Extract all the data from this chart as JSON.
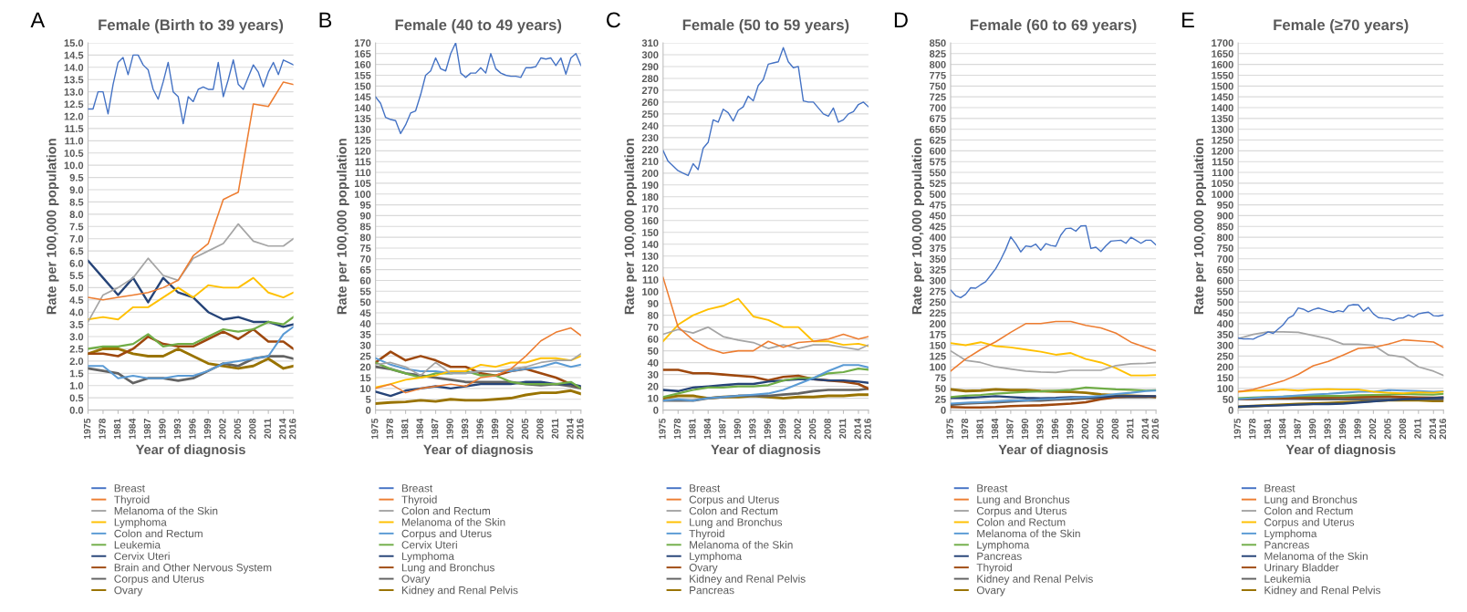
{
  "chart_data": [
    {
      "type": "line",
      "title": "Female (Birth to 39 years)",
      "xlabel": "Year of diagnosis",
      "ylabel": "Rate per 100,000 population",
      "annotations": [
        "A"
      ],
      "grid": "y",
      "legend": "bottom",
      "x": [
        1975,
        1978,
        1981,
        1984,
        1987,
        1990,
        1993,
        1996,
        1999,
        2002,
        2005,
        2008,
        2011,
        2014,
        2016
      ],
      "xlim": [
        1975,
        2016
      ],
      "xticks": [
        1975,
        1978,
        1981,
        1984,
        1987,
        1990,
        1993,
        1996,
        1999,
        2002,
        2005,
        2008,
        2011,
        2014,
        2016
      ],
      "ylim": [
        0,
        15
      ],
      "yticks": [
        {
          "value": 0,
          "label": "0.0"
        },
        {
          "value": 0.5,
          "label": "0.5"
        },
        {
          "value": 1,
          "label": "1.0"
        },
        {
          "value": 1.5,
          "label": "1.5"
        },
        {
          "value": 2,
          "label": "2.0"
        },
        {
          "value": 2.5,
          "label": "2.5"
        },
        {
          "value": 3,
          "label": "3.0"
        },
        {
          "value": 3.5,
          "label": "3.5"
        },
        {
          "value": 4,
          "label": "4.0"
        },
        {
          "value": 4.5,
          "label": "4.5"
        },
        {
          "value": 5,
          "label": "5.0"
        },
        {
          "value": 5.5,
          "label": "5.5"
        },
        {
          "value": 6,
          "label": "6.0"
        },
        {
          "value": 6.5,
          "label": "6.5"
        },
        {
          "value": 7,
          "label": "7.0"
        },
        {
          "value": 7.5,
          "label": "7.5"
        },
        {
          "value": 8,
          "label": "8.0"
        },
        {
          "value": 8.5,
          "label": "8.5"
        },
        {
          "value": 9,
          "label": "9.0"
        },
        {
          "value": 9.5,
          "label": "9.5"
        },
        {
          "value": 10,
          "label": "10.0"
        },
        {
          "value": 10.5,
          "label": "10.5"
        },
        {
          "value": 11,
          "label": "11.0"
        },
        {
          "value": 11.5,
          "label": "11.5"
        },
        {
          "value": 12,
          "label": "12.0"
        },
        {
          "value": 12.5,
          "label": "12.5"
        },
        {
          "value": 13,
          "label": "13.0"
        },
        {
          "value": 13.5,
          "label": "13.5"
        },
        {
          "value": 14,
          "label": "14.0"
        },
        {
          "value": 14.5,
          "label": "14.5"
        },
        {
          "value": 15,
          "label": "15.0"
        }
      ],
      "series": [
        {
          "name": "Breast",
          "color": "#4472c4",
          "x": [
            1975,
            1976,
            1977,
            1978,
            1979,
            1980,
            1981,
            1982,
            1983,
            1984,
            1985,
            1986,
            1987,
            1988,
            1989,
            1990,
            1991,
            1992,
            1993,
            1994,
            1995,
            1996,
            1997,
            1998,
            1999,
            2000,
            2001,
            2002,
            2003,
            2004,
            2005,
            2006,
            2007,
            2008,
            2009,
            2010,
            2011,
            2012,
            2013,
            2014,
            2015,
            2016
          ],
          "values": [
            12.3,
            12.3,
            13.0,
            13.0,
            12.1,
            13.3,
            14.2,
            14.4,
            13.7,
            14.5,
            14.5,
            14.1,
            13.9,
            13.1,
            12.7,
            13.4,
            14.2,
            13.0,
            12.8,
            11.7,
            12.8,
            12.6,
            13.1,
            13.2,
            13.1,
            13.1,
            14.2,
            12.8,
            13.5,
            14.3,
            13.3,
            13.1,
            13.6,
            14.1,
            13.8,
            13.2,
            13.8,
            14.2,
            13.7,
            14.3,
            14.2,
            14.1
          ]
        },
        {
          "name": "Thyroid",
          "color": "#ed7d31",
          "values": [
            4.6,
            4.5,
            4.6,
            4.7,
            4.8,
            5.0,
            5.3,
            6.3,
            6.8,
            8.6,
            8.9,
            12.5,
            12.4,
            13.4,
            13.3
          ]
        },
        {
          "name": "Melanoma of the Skin",
          "color": "#a5a5a5",
          "values": [
            3.6,
            4.7,
            5.0,
            5.4,
            6.2,
            5.5,
            5.3,
            6.2,
            6.5,
            6.8,
            7.6,
            6.9,
            6.7,
            6.7,
            7.0
          ]
        },
        {
          "name": "Lymphoma",
          "color": "#ffc000",
          "values": [
            3.7,
            3.8,
            3.7,
            4.2,
            4.2,
            4.6,
            5.0,
            4.6,
            5.1,
            5.0,
            5.0,
            5.4,
            4.8,
            4.6,
            4.8
          ]
        },
        {
          "name": "Colon and Rectum",
          "color": "#5b9bd5",
          "values": [
            1.8,
            1.8,
            1.3,
            1.4,
            1.3,
            1.3,
            1.4,
            1.4,
            1.6,
            1.9,
            2.0,
            2.1,
            2.2,
            3.1,
            3.4
          ]
        },
        {
          "name": "Leukemia",
          "color": "#70ad47",
          "values": [
            2.5,
            2.6,
            2.6,
            2.7,
            3.1,
            2.6,
            2.7,
            2.7,
            3.0,
            3.3,
            3.2,
            3.3,
            3.6,
            3.5,
            3.8
          ]
        },
        {
          "name": "Cervix Uteri",
          "color": "#264478",
          "values": [
            6.1,
            5.4,
            4.7,
            5.4,
            4.4,
            5.4,
            4.8,
            4.6,
            4.0,
            3.7,
            3.8,
            3.6,
            3.6,
            3.4,
            3.5
          ]
        },
        {
          "name": "Brain and Other Nervous System",
          "color": "#9e480e",
          "values": [
            2.3,
            2.3,
            2.2,
            2.5,
            3.0,
            2.7,
            2.6,
            2.6,
            2.9,
            3.2,
            2.9,
            3.3,
            2.8,
            2.8,
            2.5
          ]
        },
        {
          "name": "Corpus and Uterus",
          "color": "#636363",
          "values": [
            1.7,
            1.6,
            1.5,
            1.1,
            1.3,
            1.3,
            1.2,
            1.3,
            1.6,
            1.9,
            1.8,
            2.1,
            2.2,
            2.2,
            2.1
          ]
        },
        {
          "name": "Ovary",
          "color": "#997300",
          "values": [
            2.3,
            2.5,
            2.5,
            2.3,
            2.2,
            2.2,
            2.5,
            2.2,
            1.9,
            1.8,
            1.7,
            1.8,
            2.1,
            1.7,
            1.8
          ]
        }
      ]
    },
    {
      "type": "line",
      "title": "Female (40 to 49 years)",
      "xlabel": "Year of diagnosis",
      "ylabel": "Rate per 100,000 population",
      "annotations": [
        "B"
      ],
      "grid": "y",
      "legend": "bottom",
      "x": [
        1975,
        1978,
        1981,
        1984,
        1987,
        1990,
        1993,
        1996,
        1999,
        2002,
        2005,
        2008,
        2011,
        2014,
        2016
      ],
      "xlim": [
        1975,
        2016
      ],
      "xticks": [
        1975,
        1978,
        1981,
        1984,
        1987,
        1990,
        1993,
        1996,
        1999,
        2002,
        2005,
        2008,
        2011,
        2014,
        2016
      ],
      "ylim": [
        0,
        170
      ],
      "yticks": [
        0,
        5,
        10,
        15,
        20,
        25,
        30,
        35,
        40,
        45,
        50,
        55,
        60,
        65,
        70,
        75,
        80,
        85,
        90,
        95,
        100,
        105,
        110,
        115,
        120,
        125,
        130,
        135,
        140,
        145,
        150,
        155,
        160,
        165,
        170
      ],
      "series": [
        {
          "name": "Breast",
          "color": "#4472c4",
          "x": [
            1975,
            1976,
            1977,
            1978,
            1979,
            1980,
            1981,
            1982,
            1983,
            1984,
            1985,
            1986,
            1987,
            1988,
            1989,
            1990,
            1991,
            1992,
            1993,
            1994,
            1995,
            1996,
            1997,
            1998,
            1999,
            2000,
            2001,
            2002,
            2003,
            2004,
            2005,
            2006,
            2007,
            2008,
            2009,
            2010,
            2011,
            2012,
            2013,
            2014,
            2015,
            2016
          ],
          "values": [
            145,
            142,
            135.5,
            134.5,
            134,
            128,
            132,
            137.5,
            138.5,
            146,
            155,
            157,
            163,
            158,
            157,
            165,
            170,
            156,
            154,
            156,
            156,
            158.5,
            156,
            165,
            158,
            156,
            155,
            154.5,
            154.5,
            154,
            158.5,
            158.5,
            159,
            163,
            162.5,
            163,
            159.5,
            163,
            155.5,
            163,
            165,
            159.5
          ]
        },
        {
          "name": "Thyroid",
          "color": "#ed7d31",
          "values": [
            10,
            12,
            8,
            10,
            11,
            12,
            11,
            15,
            16,
            19,
            25,
            32,
            36,
            38,
            34.5
          ]
        },
        {
          "name": "Colon and Rectum",
          "color": "#a5a5a5",
          "values": [
            21,
            22,
            20,
            16,
            22,
            17,
            17,
            18,
            18,
            19,
            20,
            22,
            23,
            23,
            26
          ]
        },
        {
          "name": "Melanoma of the Skin",
          "color": "#ffc000",
          "values": [
            10.5,
            12,
            14,
            15,
            16,
            18,
            18,
            21,
            20,
            22,
            22,
            24,
            24,
            23,
            25
          ]
        },
        {
          "name": "Corpus and Uterus",
          "color": "#5b9bd5",
          "values": [
            24,
            21,
            19,
            18,
            18,
            17,
            17,
            18,
            18,
            18,
            19,
            20,
            22,
            20,
            21
          ]
        },
        {
          "name": "Cervix Uteri",
          "color": "#70ad47",
          "values": [
            22,
            19,
            17,
            15,
            17,
            17,
            18,
            16,
            16,
            13,
            12,
            12,
            12,
            13,
            10
          ]
        },
        {
          "name": "Lymphoma",
          "color": "#264478",
          "values": [
            8.5,
            6.5,
            9,
            10,
            11,
            10,
            11,
            12,
            12,
            12,
            13,
            13,
            12,
            12,
            11
          ]
        },
        {
          "name": "Lung and Bronchus",
          "color": "#9e480e",
          "values": [
            22,
            27,
            23,
            25,
            23,
            20,
            20,
            17,
            16,
            18,
            19,
            17,
            15,
            12,
            10.5
          ]
        },
        {
          "name": "Ovary",
          "color": "#636363",
          "values": [
            20,
            19,
            17,
            16,
            15,
            14,
            13,
            13,
            13,
            13,
            12,
            11.5,
            12,
            11,
            10
          ]
        },
        {
          "name": "Kidney and Renal Pelvis",
          "color": "#997300",
          "values": [
            3,
            3.5,
            3.8,
            4.5,
            4,
            5,
            4.5,
            4.5,
            5,
            5.5,
            7,
            8,
            8,
            9,
            7.5
          ]
        }
      ]
    },
    {
      "type": "line",
      "title": "Female (50 to 59 years)",
      "xlabel": "Year of diagnosis",
      "ylabel": "Rate per 100,000 population",
      "annotations": [
        "C"
      ],
      "grid": "y",
      "legend": "bottom",
      "x": [
        1975,
        1978,
        1981,
        1984,
        1987,
        1990,
        1993,
        1996,
        1999,
        2002,
        2005,
        2008,
        2011,
        2014,
        2016
      ],
      "xlim": [
        1975,
        2016
      ],
      "xticks": [
        1975,
        1978,
        1981,
        1984,
        1987,
        1990,
        1993,
        1996,
        1999,
        2002,
        2005,
        2008,
        2011,
        2014,
        2016
      ],
      "ylim": [
        0,
        310
      ],
      "yticks": [
        0,
        10,
        20,
        30,
        40,
        50,
        60,
        70,
        80,
        90,
        100,
        110,
        120,
        130,
        140,
        150,
        160,
        170,
        180,
        190,
        200,
        210,
        220,
        230,
        240,
        250,
        260,
        270,
        280,
        290,
        300,
        310
      ],
      "series": [
        {
          "name": "Breast",
          "color": "#4472c4",
          "x": [
            1975,
            1976,
            1977,
            1978,
            1979,
            1980,
            1981,
            1982,
            1983,
            1984,
            1985,
            1986,
            1987,
            1988,
            1989,
            1990,
            1991,
            1992,
            1993,
            1994,
            1995,
            1996,
            1997,
            1998,
            1999,
            2000,
            2001,
            2002,
            2003,
            2004,
            2005,
            2006,
            2007,
            2008,
            2009,
            2010,
            2011,
            2012,
            2013,
            2014,
            2015,
            2016
          ],
          "values": [
            219,
            210,
            206,
            202,
            200,
            198,
            208,
            203,
            221,
            226,
            245,
            243,
            254,
            251,
            244,
            253,
            256,
            265,
            261,
            274,
            279,
            292,
            293,
            294,
            306,
            294,
            289,
            290,
            261,
            260,
            260,
            255,
            250,
            248,
            255,
            243,
            245,
            250,
            252,
            258,
            260,
            256
          ]
        },
        {
          "name": "Corpus and Uterus",
          "color": "#ed7d31",
          "values": [
            112,
            70,
            59,
            52,
            48,
            50,
            50,
            58,
            53,
            57,
            58,
            60,
            64,
            60,
            62
          ]
        },
        {
          "name": "Colon and Rectum",
          "color": "#a5a5a5",
          "values": [
            64,
            68,
            65,
            70,
            62,
            59,
            57,
            52,
            55,
            52,
            55,
            55,
            53,
            51,
            55
          ]
        },
        {
          "name": "Lung and Bronchus",
          "color": "#ffc000",
          "values": [
            58,
            72,
            80,
            85,
            88,
            94,
            79,
            76,
            70,
            70,
            58,
            58,
            55,
            56,
            54
          ]
        },
        {
          "name": "Thyroid",
          "color": "#5b9bd5",
          "values": [
            8,
            9,
            8,
            10,
            11,
            12,
            13,
            14,
            17,
            22,
            27,
            33,
            38,
            38,
            36
          ]
        },
        {
          "name": "Melanoma of the Skin",
          "color": "#70ad47",
          "values": [
            11,
            14,
            17,
            19,
            19,
            20,
            20,
            21,
            25,
            27,
            27,
            31,
            32,
            35,
            34
          ]
        },
        {
          "name": "Lymphoma",
          "color": "#264478",
          "values": [
            17,
            16,
            19,
            20,
            21,
            22,
            22,
            24,
            25,
            26,
            26,
            25,
            25,
            24,
            23
          ]
        },
        {
          "name": "Ovary",
          "color": "#9e480e",
          "values": [
            34,
            34,
            31,
            31,
            30,
            29,
            28,
            25,
            28,
            29,
            26,
            25,
            24,
            22,
            18
          ]
        },
        {
          "name": "Kidney and Renal Pelvis",
          "color": "#636363",
          "values": [
            8,
            8,
            8,
            10,
            11,
            12,
            12,
            12,
            13,
            14,
            16,
            17,
            17,
            17,
            18
          ]
        },
        {
          "name": "Pancreas",
          "color": "#997300",
          "values": [
            10,
            12,
            12,
            10,
            11,
            11,
            12,
            11,
            10,
            11,
            11,
            12,
            12,
            13,
            13
          ]
        }
      ]
    },
    {
      "type": "line",
      "title": "Female (60 to 69 years)",
      "xlabel": "Year of diagnosis",
      "ylabel": "Rate per 100,000 population",
      "annotations": [
        "D"
      ],
      "grid": "y",
      "legend": "bottom",
      "x": [
        1975,
        1978,
        1981,
        1984,
        1987,
        1990,
        1993,
        1996,
        1999,
        2002,
        2005,
        2008,
        2011,
        2014,
        2016
      ],
      "xlim": [
        1975,
        2016
      ],
      "xticks": [
        1975,
        1978,
        1981,
        1984,
        1987,
        1990,
        1993,
        1996,
        1999,
        2002,
        2005,
        2008,
        2011,
        2014,
        2016
      ],
      "ylim": [
        0,
        850
      ],
      "yticks": [
        0,
        25,
        50,
        75,
        100,
        125,
        150,
        175,
        200,
        225,
        250,
        275,
        300,
        325,
        350,
        375,
        400,
        425,
        450,
        475,
        500,
        525,
        550,
        575,
        600,
        625,
        650,
        675,
        700,
        725,
        750,
        775,
        800,
        825,
        850
      ],
      "series": [
        {
          "name": "Breast",
          "color": "#4472c4",
          "x": [
            1975,
            1976,
            1977,
            1978,
            1979,
            1980,
            1981,
            1982,
            1983,
            1984,
            1985,
            1986,
            1987,
            1988,
            1989,
            1990,
            1991,
            1992,
            1993,
            1994,
            1995,
            1996,
            1997,
            1998,
            1999,
            2000,
            2001,
            2002,
            2003,
            2004,
            2005,
            2006,
            2007,
            2008,
            2009,
            2010,
            2011,
            2012,
            2013,
            2014,
            2015,
            2016
          ],
          "values": [
            278,
            265,
            260,
            268,
            283,
            282,
            290,
            297,
            312,
            327,
            348,
            372,
            401,
            385,
            366,
            380,
            378,
            384,
            370,
            385,
            381,
            379,
            405,
            420,
            421,
            414,
            426,
            427,
            374,
            377,
            367,
            380,
            391,
            392,
            393,
            386,
            400,
            393,
            386,
            393,
            393,
            382
          ]
        },
        {
          "name": "Lung and Bronchus",
          "color": "#ed7d31",
          "values": [
            90,
            118,
            140,
            158,
            180,
            200,
            200,
            205,
            205,
            196,
            190,
            178,
            157,
            145,
            137
          ]
        },
        {
          "name": "Corpus and Uterus",
          "color": "#a5a5a5",
          "values": [
            137,
            115,
            110,
            100,
            95,
            90,
            88,
            87,
            92,
            92,
            92,
            103,
            107,
            108,
            110
          ]
        },
        {
          "name": "Colon and Rectum",
          "color": "#ffc000",
          "values": [
            155,
            150,
            157,
            148,
            145,
            140,
            135,
            128,
            132,
            118,
            110,
            97,
            80,
            80,
            81
          ]
        },
        {
          "name": "Melanoma of the Skin",
          "color": "#5b9bd5",
          "values": [
            15,
            17,
            18,
            20,
            22,
            22,
            25,
            26,
            28,
            30,
            33,
            37,
            40,
            44,
            45
          ]
        },
        {
          "name": "Lymphoma",
          "color": "#70ad47",
          "values": [
            30,
            33,
            35,
            38,
            40,
            42,
            43,
            45,
            47,
            52,
            50,
            48,
            47,
            45,
            46
          ]
        },
        {
          "name": "Pancreas",
          "color": "#264478",
          "values": [
            28,
            28,
            30,
            32,
            30,
            28,
            27,
            28,
            30,
            30,
            30,
            32,
            32,
            32,
            32
          ]
        },
        {
          "name": "Thyroid",
          "color": "#9e480e",
          "values": [
            7,
            6,
            6,
            7,
            9,
            10,
            11,
            13,
            15,
            18,
            25,
            30,
            32,
            32,
            31
          ]
        },
        {
          "name": "Kidney and Renal Pelvis",
          "color": "#636363",
          "values": [
            12,
            15,
            17,
            18,
            20,
            22,
            22,
            24,
            25,
            27,
            28,
            30,
            30,
            30,
            31
          ]
        },
        {
          "name": "Ovary",
          "color": "#997300",
          "values": [
            48,
            44,
            45,
            48,
            46,
            46,
            44,
            43,
            42,
            40,
            36,
            34,
            33,
            32,
            30
          ]
        }
      ]
    },
    {
      "type": "line",
      "title": "Female (≥70 years)",
      "xlabel": "Year of diagnosis",
      "ylabel": "Rate per 100,000 population",
      "annotations": [
        "E"
      ],
      "grid": "y",
      "legend": "bottom",
      "x": [
        1975,
        1978,
        1981,
        1984,
        1987,
        1990,
        1993,
        1996,
        1999,
        2002,
        2005,
        2008,
        2011,
        2014,
        2016
      ],
      "xlim": [
        1975,
        2016
      ],
      "xticks": [
        1975,
        1978,
        1981,
        1984,
        1987,
        1990,
        1993,
        1996,
        1999,
        2002,
        2005,
        2008,
        2011,
        2014,
        2016
      ],
      "ylim": [
        0,
        1700
      ],
      "yticks": [
        0,
        50,
        100,
        150,
        200,
        250,
        300,
        350,
        400,
        450,
        500,
        550,
        600,
        650,
        700,
        750,
        800,
        850,
        900,
        950,
        1000,
        1050,
        1100,
        1150,
        1200,
        1250,
        1300,
        1350,
        1400,
        1450,
        1500,
        1550,
        1600,
        1650,
        1700
      ],
      "series": [
        {
          "name": "Breast",
          "color": "#4472c4",
          "x": [
            1975,
            1976,
            1977,
            1978,
            1979,
            1980,
            1981,
            1982,
            1983,
            1984,
            1985,
            1986,
            1987,
            1988,
            1989,
            1990,
            1991,
            1992,
            1993,
            1994,
            1995,
            1996,
            1997,
            1998,
            1999,
            2000,
            2001,
            2002,
            2003,
            2004,
            2005,
            2006,
            2007,
            2008,
            2009,
            2010,
            2011,
            2012,
            2013,
            2014,
            2015,
            2016
          ],
          "values": [
            334,
            329,
            330,
            328,
            340,
            348,
            362,
            355,
            375,
            395,
            425,
            438,
            473,
            467,
            455,
            465,
            472,
            465,
            458,
            452,
            460,
            455,
            483,
            488,
            487,
            458,
            475,
            445,
            428,
            425,
            423,
            415,
            425,
            427,
            440,
            430,
            445,
            450,
            453,
            437,
            435,
            440
          ]
        },
        {
          "name": "Lung and Bronchus",
          "color": "#ed7d31",
          "values": [
            85,
            95,
            115,
            135,
            165,
            205,
            225,
            255,
            285,
            290,
            305,
            325,
            320,
            315,
            290
          ]
        },
        {
          "name": "Colon and Rectum",
          "color": "#a5a5a5",
          "values": [
            330,
            350,
            362,
            362,
            360,
            345,
            330,
            305,
            305,
            300,
            255,
            245,
            200,
            180,
            160
          ]
        },
        {
          "name": "Corpus and Uterus",
          "color": "#ffc000",
          "values": [
            85,
            90,
            90,
            95,
            90,
            95,
            97,
            95,
            95,
            85,
            80,
            78,
            82,
            80,
            85
          ]
        },
        {
          "name": "Lymphoma",
          "color": "#5b9bd5",
          "values": [
            50,
            55,
            60,
            62,
            68,
            72,
            75,
            80,
            85,
            85,
            92,
            90,
            88,
            85,
            87
          ]
        },
        {
          "name": "Pancreas",
          "color": "#70ad47",
          "values": [
            55,
            58,
            60,
            62,
            65,
            65,
            65,
            65,
            68,
            70,
            72,
            75,
            73,
            72,
            75
          ]
        },
        {
          "name": "Melanoma of the Skin",
          "color": "#264478",
          "values": [
            15,
            18,
            20,
            22,
            25,
            27,
            28,
            30,
            35,
            40,
            45,
            50,
            52,
            55,
            58
          ]
        },
        {
          "name": "Urinary Bladder",
          "color": "#9e480e",
          "values": [
            50,
            52,
            55,
            55,
            57,
            58,
            58,
            60,
            60,
            62,
            63,
            60,
            58,
            57,
            58
          ]
        },
        {
          "name": "Leukemia",
          "color": "#636363",
          "values": [
            50,
            50,
            52,
            52,
            52,
            50,
            50,
            50,
            50,
            50,
            50,
            52,
            50,
            50,
            50
          ]
        },
        {
          "name": "Kidney and Renal Pelvis",
          "color": "#997300",
          "values": [
            15,
            18,
            22,
            25,
            28,
            30,
            32,
            35,
            38,
            42,
            45,
            45,
            45,
            42,
            42
          ]
        }
      ]
    }
  ]
}
